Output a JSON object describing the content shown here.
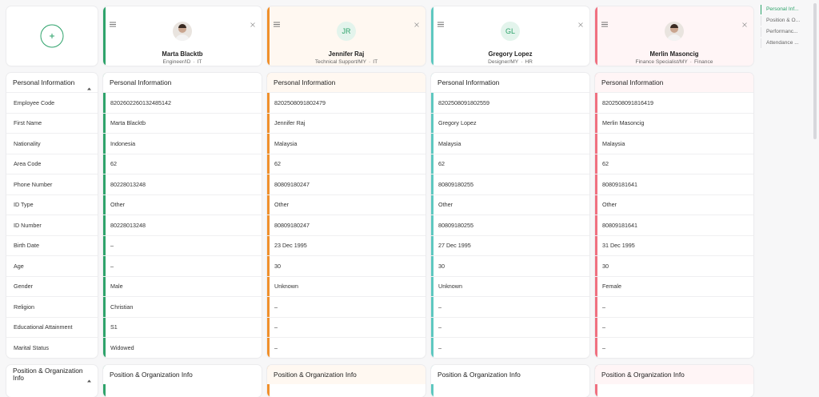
{
  "nav": {
    "items": [
      "Personal Inf...",
      "Position & O...",
      "Performanc...",
      "Attendance ..."
    ],
    "active": 0
  },
  "employees": [
    {
      "name": "Marta Blacktb",
      "role": "Engineer/ID",
      "department": "IT",
      "accent": "#2ea36b",
      "tint": "#ffffff",
      "photo": true
    },
    {
      "name": "Jennifer Raj",
      "role": "Technical Support/MY",
      "department": "IT",
      "initials": "JR",
      "accent": "#f0902c",
      "tint": "#fff8f1"
    },
    {
      "name": "Gregory Lopez",
      "role": "Designer/MY",
      "department": "HR",
      "initials": "GL",
      "accent": "#5ec8c0",
      "tint": "#ffffff"
    },
    {
      "name": "Merlin Masoncig",
      "role": "Finance Specialist/MY",
      "department": "Finance",
      "accent": "#f07080",
      "tint": "#fff5f6",
      "photo": true
    }
  ],
  "sections": [
    {
      "title": "Personal Information",
      "fields": [
        "Employee Code",
        "First Name",
        "Nationality",
        "Area Code",
        "Phone Number",
        "ID Type",
        "ID Number",
        "Birth Date",
        "Age",
        "Gender",
        "Religion",
        "Educational Attainment",
        "Marital Status"
      ],
      "rows": [
        [
          "8202602260132485142",
          "Marta Blacktb",
          "Indonesia",
          "62",
          "80228013248",
          "Other",
          "80228013248",
          "–",
          "–",
          "Male",
          "Christian",
          "S1",
          "Widowed"
        ],
        [
          "8202508091802479",
          "Jennifer Raj",
          "Malaysia",
          "62",
          "80809180247",
          "Other",
          "80809180247",
          "23 Dec 1995",
          "30",
          "Unknown",
          "–",
          "–",
          "–"
        ],
        [
          "8202508091802559",
          "Gregory Lopez",
          "Malaysia",
          "62",
          "80809180255",
          "Other",
          "80809180255",
          "27 Dec 1995",
          "30",
          "Unknown",
          "–",
          "–",
          "–"
        ],
        [
          "8202508091816419",
          "Merlin Masoncig",
          "Malaysia",
          "62",
          "80809181641",
          "Other",
          "80809181641",
          "31 Dec 1995",
          "30",
          "Female",
          "–",
          "–",
          "–"
        ]
      ]
    },
    {
      "title": "Position & Organization Info"
    }
  ]
}
